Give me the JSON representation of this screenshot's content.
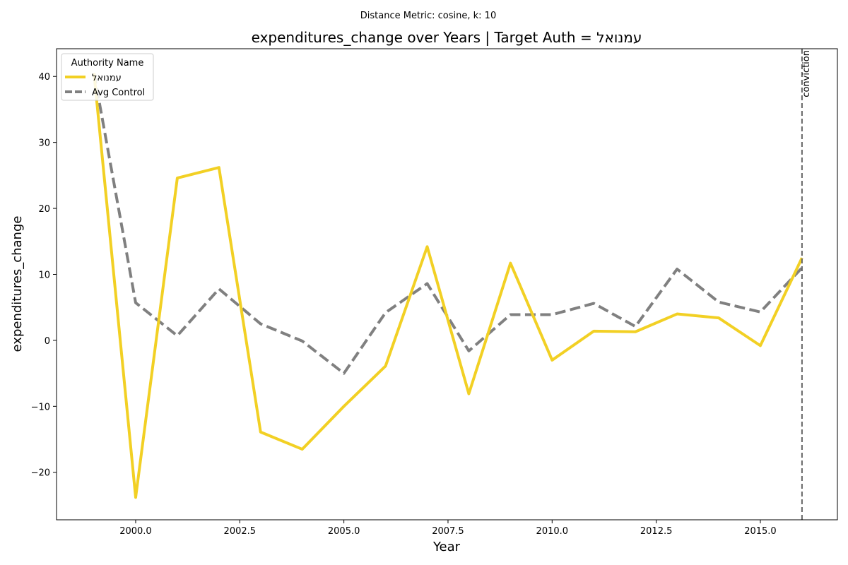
{
  "suptitle": "Distance Metric: cosine, k: 10",
  "colors": {
    "target": "#f2d024",
    "control": "#808080",
    "vline": "#666666"
  },
  "chart_data": {
    "type": "line",
    "title": "expenditures_change over Years | Target Auth = עמנואל",
    "xlabel": "Year",
    "ylabel": "expenditures_change",
    "xlim": [
      1998.1,
      2016.85
    ],
    "ylim": [
      -27.2,
      44.2
    ],
    "xticks": [
      2000.0,
      2002.5,
      2005.0,
      2007.5,
      2010.0,
      2012.5,
      2015.0
    ],
    "xtick_labels": [
      "2000.0",
      "2002.5",
      "2005.0",
      "2007.5",
      "2010.0",
      "2012.5",
      "2015.0"
    ],
    "yticks": [
      -20,
      -10,
      0,
      10,
      20,
      30,
      40
    ],
    "ytick_labels": [
      "−20",
      "−10",
      "0",
      "10",
      "20",
      "30",
      "40"
    ],
    "x": [
      1999,
      2000,
      2001,
      2002,
      2003,
      2004,
      2005,
      2006,
      2007,
      2008,
      2009,
      2010,
      2011,
      2012,
      2013,
      2014,
      2015,
      2016
    ],
    "series": [
      {
        "name": "עמנואל",
        "style": "solid",
        "values": [
          40.5,
          -23.8,
          24.6,
          26.2,
          -13.9,
          -16.5,
          -10.0,
          -3.9,
          14.2,
          -8.1,
          11.7,
          -3.0,
          1.4,
          1.3,
          4.0,
          3.4,
          -0.8,
          12.5
        ]
      },
      {
        "name": "Avg Control",
        "style": "dashed",
        "values": [
          40.5,
          5.7,
          0.7,
          7.8,
          2.5,
          -0.1,
          -5.0,
          4.2,
          8.6,
          -1.6,
          3.9,
          3.9,
          5.6,
          2.1,
          10.8,
          5.8,
          4.3,
          11.0
        ]
      }
    ],
    "legend": {
      "title": "Authority Name",
      "placement": "top-left"
    },
    "annotations": [
      {
        "type": "vline",
        "x": 2016,
        "label": "conviction"
      }
    ],
    "grid": false
  }
}
